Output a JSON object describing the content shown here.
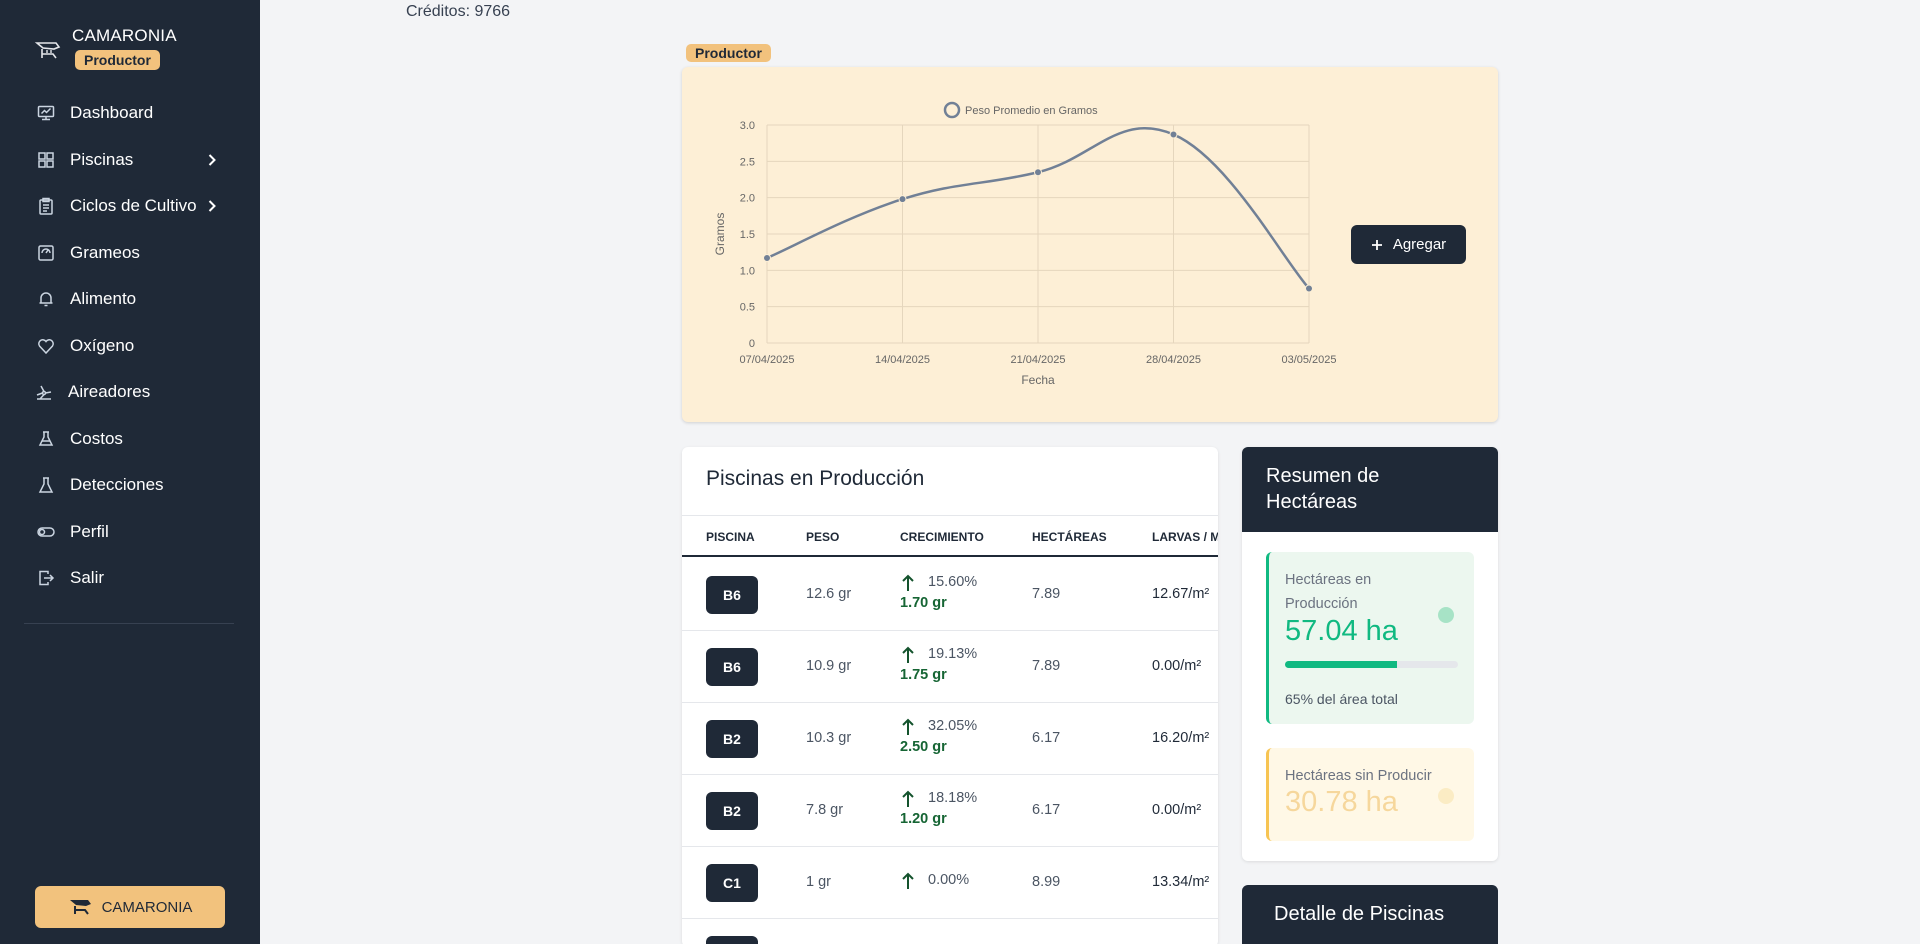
{
  "sidebar": {
    "brand": "CAMARONIA",
    "role": "Productor",
    "items": [
      {
        "label": "Dashboard",
        "icon": "dashboard-icon",
        "chevron": false
      },
      {
        "label": "Piscinas",
        "icon": "grid-icon",
        "chevron": true
      },
      {
        "label": "Ciclos de Cultivo",
        "icon": "clipboard-icon",
        "chevron": true
      },
      {
        "label": "Grameos",
        "icon": "scale-icon",
        "chevron": false
      },
      {
        "label": "Alimento",
        "icon": "bell-icon",
        "chevron": false
      },
      {
        "label": "Oxígeno",
        "icon": "heart-icon",
        "chevron": false
      },
      {
        "label": "Aireadores",
        "icon": "fan-icon",
        "chevron": false
      },
      {
        "label": "Costos",
        "icon": "flask-icon",
        "chevron": false
      },
      {
        "label": "Detecciones",
        "icon": "beaker-icon",
        "chevron": false
      },
      {
        "label": "Perfil",
        "icon": "toggle-icon",
        "chevron": false
      },
      {
        "label": "Salir",
        "icon": "logout-icon",
        "chevron": false
      }
    ],
    "footer_label": "CAMARONIA"
  },
  "header": {
    "credits": "Créditos: 9766"
  },
  "chart_section": {
    "role_badge": "Productor",
    "add_button": "Agregar"
  },
  "chart_data": {
    "type": "line",
    "title": "",
    "legend": "Peso Promedio en Gramos",
    "xlabel": "Fecha",
    "ylabel": "Gramos",
    "x_ticks": [
      "07/04/2025",
      "14/04/2025",
      "21/04/2025",
      "28/04/2025",
      "03/05/2025"
    ],
    "y_ticks": [
      "0",
      "0.5",
      "1.0",
      "1.5",
      "2.0",
      "2.5",
      "3.0"
    ],
    "ylim": [
      0,
      3
    ],
    "series": [
      {
        "name": "Peso Promedio en Gramos",
        "points": [
          {
            "x": "07/04/2025",
            "y": 1.17
          },
          {
            "x": "14/04/2025",
            "y": 1.98
          },
          {
            "x": "21/04/2025",
            "y": 2.35
          },
          {
            "x": "28/04/2025",
            "y": 2.87
          },
          {
            "x": "03/05/2025",
            "y": 0.75
          }
        ]
      }
    ],
    "color": "#718096",
    "grid": true,
    "legend_position": "top"
  },
  "table": {
    "title": "Piscinas en Producción",
    "columns": [
      "PISCINA",
      "PESO",
      "CRECIMIENTO",
      "HECTÁREAS",
      "LARVAS / M"
    ],
    "rows": [
      {
        "pool": "B6",
        "peso": "12.6 gr",
        "pct": "15.60%",
        "gr": "1.70 gr",
        "ha": "7.89",
        "larvas": "12.67/m²"
      },
      {
        "pool": "B6",
        "peso": "10.9 gr",
        "pct": "19.13%",
        "gr": "1.75 gr",
        "ha": "7.89",
        "larvas": "0.00/m²"
      },
      {
        "pool": "B2",
        "peso": "10.3 gr",
        "pct": "32.05%",
        "gr": "2.50 gr",
        "ha": "6.17",
        "larvas": "16.20/m²"
      },
      {
        "pool": "B2",
        "peso": "7.8 gr",
        "pct": "18.18%",
        "gr": "1.20 gr",
        "ha": "6.17",
        "larvas": "0.00/m²"
      },
      {
        "pool": "C1",
        "peso": "1 gr",
        "pct": "0.00%",
        "gr": "",
        "ha": "8.99",
        "larvas": "13.34/m²"
      },
      {
        "pool": "",
        "peso": "",
        "pct": "",
        "gr": "",
        "ha": "",
        "larvas": ""
      }
    ]
  },
  "summary": {
    "title": "Resumen de Hectáreas",
    "production_label": "Hectáreas en Producción",
    "production_value": "57.04 ha",
    "production_progress": 0.65,
    "production_note": "65% del área total",
    "idle_label": "Hectáreas sin Producir",
    "idle_value": "30.78 ha",
    "accent_green": "#10b981",
    "accent_yellow": "#f7c452"
  },
  "detail": {
    "title": "Detalle de Piscinas"
  }
}
